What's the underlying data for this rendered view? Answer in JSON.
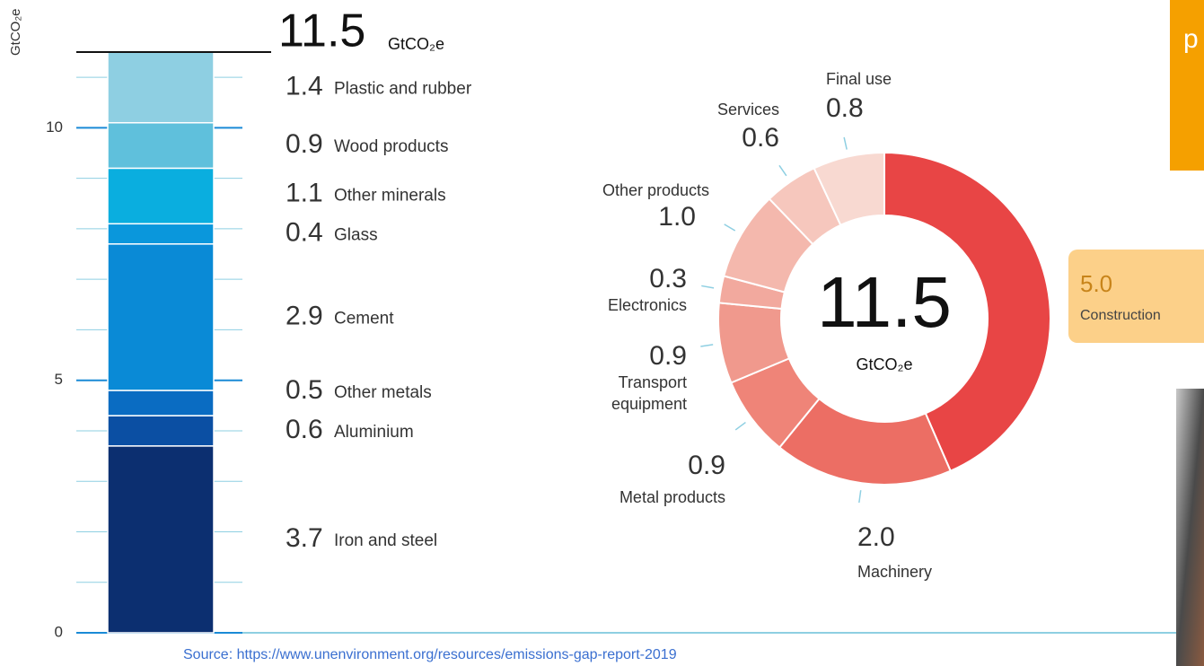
{
  "chart_data": [
    {
      "type": "stacked_bar",
      "y_label": "GtCO₂e",
      "total": 11.5,
      "total_unit": "GtCO₂e",
      "categories": [
        "Iron and steel",
        "Aluminium",
        "Other metals",
        "Cement",
        "Glass",
        "Other minerals",
        "Wood products",
        "Plastic and rubber"
      ],
      "values": [
        3.7,
        0.6,
        0.5,
        2.9,
        0.4,
        1.1,
        0.9,
        1.4
      ],
      "colors": [
        "#0c2f70",
        "#0b4fa3",
        "#0a6cc2",
        "#0a8ad6",
        "#0a97dc",
        "#0aaedf",
        "#5fc0dc",
        "#8ecfe2"
      ],
      "ylim": [
        0,
        11.5
      ],
      "yticks": [
        0,
        5,
        10
      ],
      "minor_yticks": [
        1,
        2,
        3,
        4,
        6,
        7,
        8,
        9,
        11
      ],
      "grid": true
    },
    {
      "type": "donut",
      "center_value": 11.5,
      "center_unit": "GtCO₂e",
      "categories": [
        "Construction",
        "Machinery",
        "Metal products",
        "Transport equipment",
        "Electronics",
        "Other products",
        "Services",
        "Final use"
      ],
      "values": [
        5.0,
        2.0,
        0.9,
        0.9,
        0.3,
        1.0,
        0.6,
        0.8
      ],
      "value_labels": [
        "5.0",
        "2.0",
        "0.9",
        "0.9",
        "0.3",
        "1.0",
        "0.6",
        "0.8"
      ],
      "colors": [
        "#e84545",
        "#ec6e64",
        "#ef8478",
        "#f0998d",
        "#f2a99e",
        "#f4b8ad",
        "#f6c7bd",
        "#f8d9d1"
      ]
    }
  ],
  "source": "Source: https://www.unenvironment.org/resources/emissions-gap-report-2019",
  "slide_fragment": "p"
}
